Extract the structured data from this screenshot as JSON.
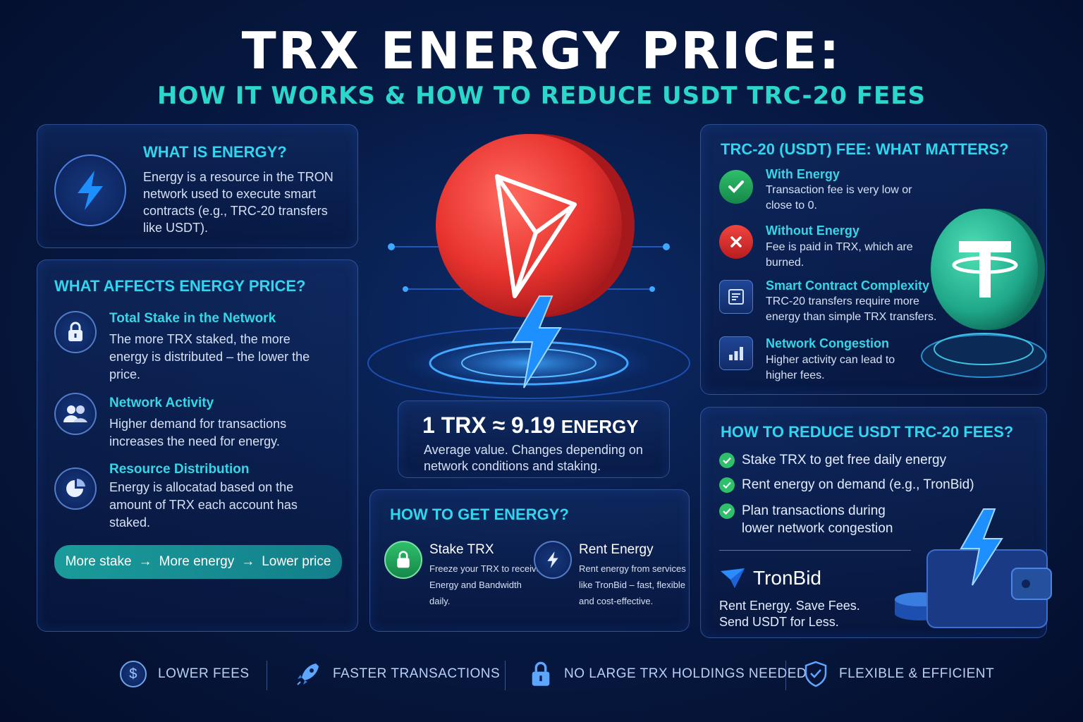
{
  "header": {
    "title": "TRX ENERGY PRICE:",
    "subtitle": "HOW IT WORKS & HOW TO REDUCE USDT TRC-20 FEES"
  },
  "what_is_energy": {
    "heading": "WHAT IS ENERGY?",
    "text": "Energy is a resource in the TRON network used to execute smart contracts (e.g., TRC-20 transfers like USDT)."
  },
  "affects": {
    "heading": "WHAT AFFECTS ENERGY PRICE?",
    "items": [
      {
        "title": "Total Stake in the Network",
        "text": "The more TRX staked, the more energy is distributed – the lower the price.",
        "icon": "lock-icon"
      },
      {
        "title": "Network Activity",
        "text": "Higher demand for transactions increases the need for energy.",
        "icon": "users-icon"
      },
      {
        "title": "Resource Distribution",
        "text": "Energy is allocatad based on the amount of TRX each account has staked.",
        "icon": "pie-chart-icon"
      }
    ],
    "flow": [
      "More stake",
      "More energy",
      "Lower price"
    ]
  },
  "rate": {
    "main": "1 TRX ≈ 9.19",
    "unit": "ENERGY",
    "note": "Average value. Changes depending on network conditions and staking."
  },
  "get_energy": {
    "heading": "HOW TO GET ENERGY?",
    "options": [
      {
        "title": "Stake TRX",
        "text": "Freeze your TRX to receive Energy and Bandwidth daily.",
        "icon": "lock-icon"
      },
      {
        "title": "Rent Energy",
        "text": "Rent energy from services like TronBid – fast, flexible and cost-effective.",
        "icon": "lightning-icon"
      }
    ]
  },
  "fees": {
    "heading": "TRC-20 (USDT) FEE: WHAT MATTERS?",
    "items": [
      {
        "title": "With Energy",
        "text": "Transaction fee is very low or close to 0.",
        "icon": "check-icon"
      },
      {
        "title": "Without Energy",
        "text": "Fee is paid in TRX, which are burned.",
        "icon": "close-icon"
      },
      {
        "title": "Smart Contract Complexity",
        "text": "TRC-20 transfers require more energy than simple TRX transfers.",
        "icon": "document-icon"
      },
      {
        "title": "Network Congestion",
        "text": "Higher activity can lead to higher fees.",
        "icon": "bar-chart-icon"
      }
    ]
  },
  "reduce": {
    "heading": "HOW TO REDUCE USDT TRC-20 FEES?",
    "items": [
      "Stake TRX to get free daily energy",
      "Rent energy on demand (e.g., TronBid)",
      "Plan transactions during lower network congestion"
    ],
    "brand": "TronBid",
    "tagline": "Rent Energy. Save Fees. Send USDT for Less."
  },
  "benefits": [
    "LOWER FEES",
    "FASTER TRANSACTIONS",
    "NO LARGE TRX HOLDINGS NEEDED",
    "FLEXIBLE & EFFICIENT"
  ],
  "colors": {
    "accent": "#33d4ee",
    "tron_red": "#e8332f",
    "tether_green": "#1fa88a",
    "lightning": "#1e8fff"
  }
}
